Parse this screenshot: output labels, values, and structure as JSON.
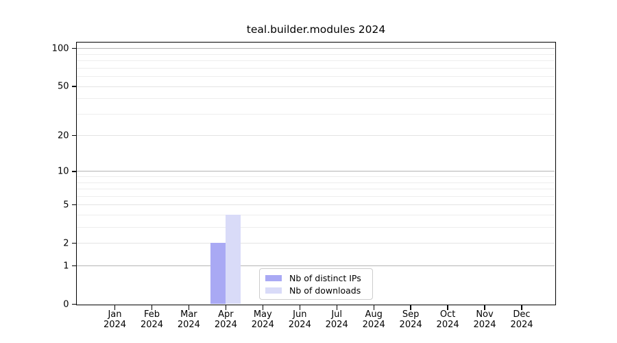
{
  "title": "teal.builder.modules 2024",
  "chart_data": {
    "type": "bar",
    "title": "teal.builder.modules 2024",
    "x_ticks": [
      {
        "label": "Jan",
        "sublabel": "2024"
      },
      {
        "label": "Feb",
        "sublabel": "2024"
      },
      {
        "label": "Mar",
        "sublabel": "2024"
      },
      {
        "label": "Apr",
        "sublabel": "2024"
      },
      {
        "label": "May",
        "sublabel": "2024"
      },
      {
        "label": "Jun",
        "sublabel": "2024"
      },
      {
        "label": "Jul",
        "sublabel": "2024"
      },
      {
        "label": "Aug",
        "sublabel": "2024"
      },
      {
        "label": "Sep",
        "sublabel": "2024"
      },
      {
        "label": "Oct",
        "sublabel": "2024"
      },
      {
        "label": "Nov",
        "sublabel": "2024"
      },
      {
        "label": "Dec",
        "sublabel": "2024"
      }
    ],
    "series": [
      {
        "name": "Nb of distinct IPs",
        "color": "#a9a9f4",
        "values": [
          0,
          0,
          0,
          2,
          0,
          0,
          0,
          0,
          0,
          0,
          0,
          0
        ]
      },
      {
        "name": "Nb of downloads",
        "color": "#d9dbf8",
        "values": [
          0,
          0,
          0,
          4,
          0,
          0,
          0,
          0,
          0,
          0,
          0,
          0
        ]
      }
    ],
    "y_axis": {
      "scale": "log1p",
      "major_ticks": [
        0,
        1,
        2,
        5,
        10,
        20,
        50,
        100
      ],
      "minor_ticks": [
        3,
        4,
        6,
        7,
        8,
        9,
        30,
        40,
        60,
        70,
        80,
        90
      ],
      "ylim": [
        0,
        111
      ]
    },
    "legend": {
      "position": "lower-center",
      "entries": [
        "Nb of distinct IPs",
        "Nb of downloads"
      ]
    },
    "grid": {
      "decade_color": "#b4b4b4",
      "major_color": "#e3e3e3",
      "minor_color": "#ededed"
    },
    "spine_color": "#000000",
    "legend_border_color": "#cccccc"
  }
}
